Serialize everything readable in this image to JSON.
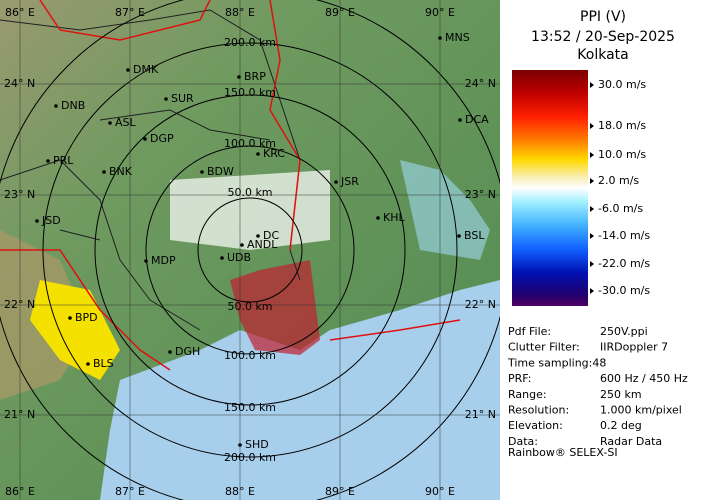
{
  "map": {
    "lon_labels": [
      "86° E",
      "87° E",
      "88° E",
      "89° E",
      "90° E"
    ],
    "lat_labels": [
      "24° N",
      "23° N",
      "22° N",
      "21° N"
    ],
    "range_labels_top": [
      "200.0 km",
      "150.0 km",
      "100.0 km",
      "50.0 km"
    ],
    "range_labels_bottom": [
      "50.0 km",
      "100.0 km",
      "150.0 km",
      "200.0 km"
    ],
    "stations": [
      "MNS",
      "DMK",
      "BRP",
      "SUR",
      "DNB",
      "ASL",
      "DCA",
      "DGP",
      "KRC",
      "PRL",
      "BNK",
      "BDW",
      "JSR",
      "KHL",
      "JSD",
      "BSL",
      "DC",
      "ANDL",
      "MDP",
      "UDB",
      "BPD",
      "BLS",
      "DGH",
      "SHD"
    ]
  },
  "panel": {
    "title": "PPI (V)",
    "datetime": "13:52 / 20-Sep-2025",
    "location": "Kolkata",
    "legend": [
      "30.0 m/s",
      "18.0 m/s",
      "10.0 m/s",
      " 2.0 m/s",
      "-6.0 m/s",
      "-14.0 m/s",
      "-22.0 m/s",
      "-30.0 m/s"
    ],
    "info": [
      [
        "Pdf File:",
        "250V.ppi"
      ],
      [
        "Clutter Filter:",
        "IIRDoppler 7"
      ],
      [
        "Time sampling:48",
        ""
      ],
      [
        "PRF:",
        "600 Hz / 450 Hz"
      ],
      [
        "Range:",
        "250 km"
      ],
      [
        "Resolution:",
        "1.000 km/pixel"
      ],
      [
        "Elevation:",
        "0.2 deg"
      ],
      [
        "Data:",
        "Radar Data"
      ]
    ],
    "footer": "Rainbow® SELEX-SI"
  }
}
